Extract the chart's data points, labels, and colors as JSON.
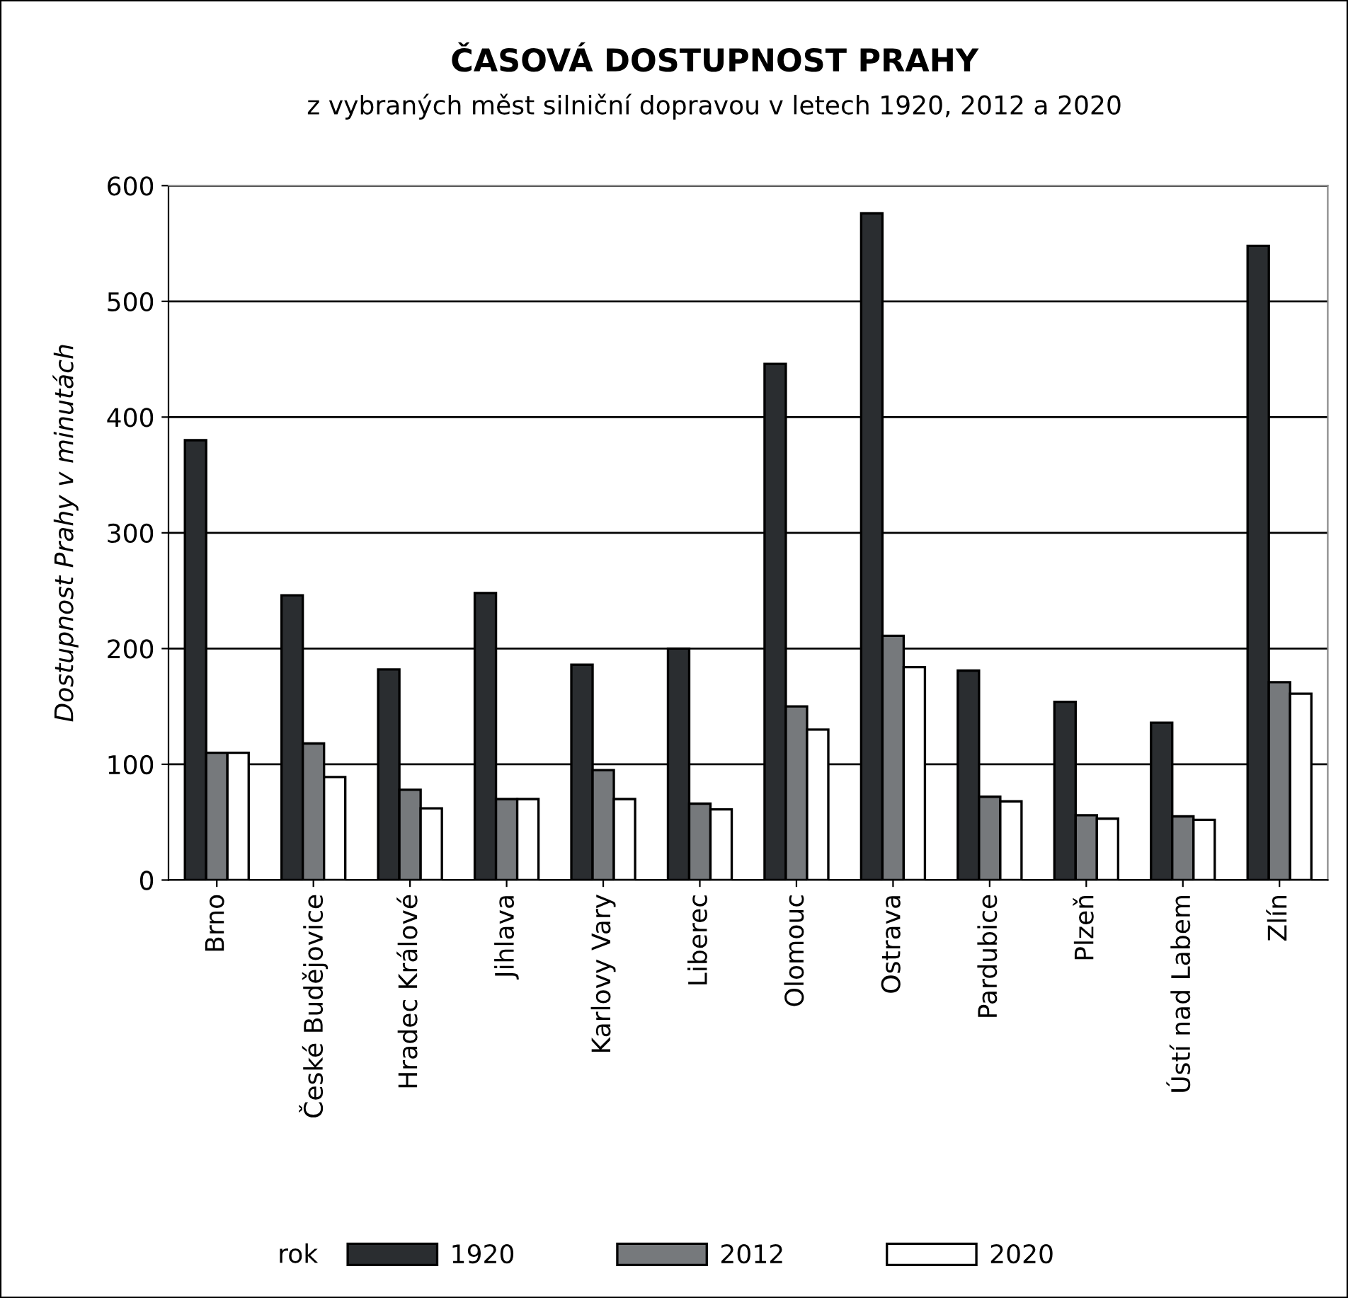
{
  "chart_data": {
    "type": "bar",
    "title": "ČASOVÁ DOSTUPNOST PRAHY",
    "subtitle": "z vybraných měst silniční dopravou v letech 1920, 2012 a 2020",
    "ylabel": "Dostupnost Prahy v minutách",
    "legend_title": "rok",
    "categories": [
      "Brno",
      "České Budějovice",
      "Hradec Králové",
      "Jihlava",
      "Karlovy Vary",
      "Liberec",
      "Olomouc",
      "Ostrava",
      "Pardubice",
      "Plzeň",
      "Ústí nad Labem",
      "Zlín"
    ],
    "series": [
      {
        "name": "1920",
        "color": "#2a2d30",
        "values": [
          380,
          246,
          182,
          248,
          186,
          200,
          446,
          576,
          181,
          154,
          136,
          548
        ]
      },
      {
        "name": "2012",
        "color": "#76797c",
        "values": [
          110,
          118,
          78,
          70,
          95,
          66,
          150,
          211,
          72,
          56,
          55,
          171
        ]
      },
      {
        "name": "2020",
        "color": "#ffffff",
        "values": [
          110,
          89,
          62,
          70,
          70,
          61,
          130,
          184,
          68,
          53,
          52,
          161
        ]
      }
    ],
    "ylim": [
      0,
      600
    ],
    "yticks": [
      0,
      100,
      200,
      300,
      400,
      500,
      600
    ],
    "grid": "y",
    "legend": "bottom"
  }
}
